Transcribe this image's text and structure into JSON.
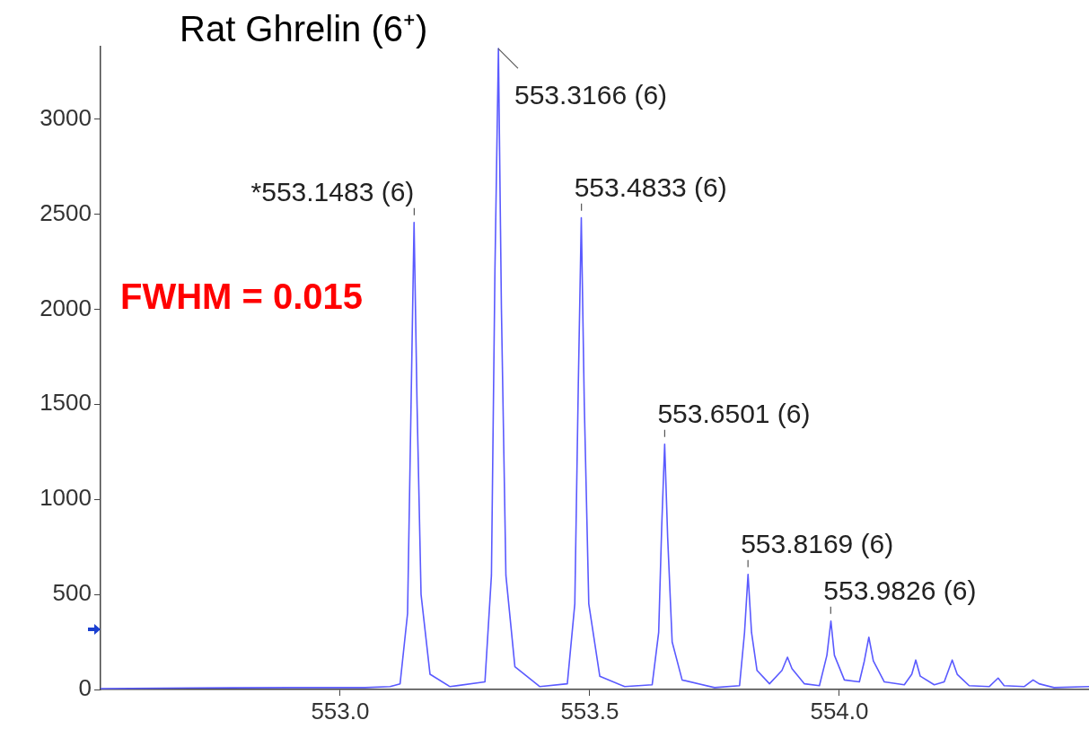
{
  "chart_data": {
    "type": "line",
    "title": "Rat Ghrelin (6⁺)",
    "color": "#5a5aff",
    "marker": "none",
    "grid": false,
    "legend": false,
    "xlim": [
      552.52,
      554.5
    ],
    "xticks": [
      {
        "value": 553.0,
        "label": "553.0"
      },
      {
        "value": 553.5,
        "label": "553.5"
      },
      {
        "value": 554.0,
        "label": "554.0"
      }
    ],
    "ylim": [
      0,
      3380
    ],
    "yticks": [
      0,
      500,
      1000,
      1500,
      2000,
      2500,
      3000
    ],
    "x": [
      552.52,
      552.7,
      552.9,
      553.05,
      553.1,
      553.12,
      553.135,
      553.142,
      553.148,
      553.154,
      553.162,
      553.18,
      553.22,
      553.29,
      553.303,
      553.31,
      553.317,
      553.323,
      553.332,
      553.35,
      553.4,
      553.455,
      553.47,
      553.477,
      553.483,
      553.489,
      553.498,
      553.52,
      553.57,
      553.625,
      553.638,
      553.644,
      553.65,
      553.656,
      553.665,
      553.685,
      553.75,
      553.8,
      553.81,
      553.817,
      553.824,
      553.835,
      553.86,
      553.885,
      553.896,
      553.905,
      553.93,
      553.96,
      553.975,
      553.983,
      553.99,
      554.01,
      554.04,
      554.05,
      554.059,
      554.068,
      554.09,
      554.13,
      554.145,
      554.153,
      554.162,
      554.19,
      554.21,
      554.226,
      554.236,
      554.26,
      554.3,
      554.318,
      554.33,
      554.37,
      554.388,
      554.4,
      554.43,
      554.5
    ],
    "values": [
      5,
      8,
      10,
      10,
      15,
      30,
      400,
      1500,
      2456,
      1500,
      500,
      80,
      15,
      40,
      600,
      2200,
      3370,
      2000,
      600,
      120,
      15,
      30,
      450,
      1600,
      2480,
      1500,
      450,
      70,
      15,
      25,
      300,
      850,
      1290,
      800,
      250,
      50,
      10,
      20,
      300,
      605,
      300,
      100,
      30,
      100,
      170,
      110,
      30,
      20,
      180,
      360,
      180,
      50,
      40,
      150,
      275,
      150,
      40,
      25,
      80,
      155,
      70,
      25,
      40,
      155,
      80,
      20,
      15,
      60,
      20,
      15,
      50,
      30,
      10,
      15
    ],
    "annotations": [
      {
        "text": "*553.1483 (6)",
        "x": 553.1483,
        "y": 2456
      },
      {
        "text": "553.3166 (6)",
        "x": 553.3166,
        "y": 3370
      },
      {
        "text": "553.4833 (6)",
        "x": 553.4833,
        "y": 2480
      },
      {
        "text": "553.6501 (6)",
        "x": 553.6501,
        "y": 1290
      },
      {
        "text": "553.8169 (6)",
        "x": 553.8169,
        "y": 605
      },
      {
        "text": "553.9826 (6)",
        "x": 553.9826,
        "y": 360
      },
      "FWHM = 0.015"
    ]
  }
}
